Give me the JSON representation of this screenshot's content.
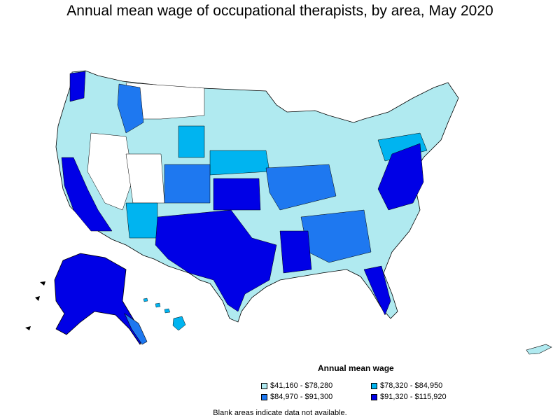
{
  "title": "Annual mean wage of occupational therapists, by area, May 2020",
  "legend": {
    "title": "Annual mean wage",
    "items": [
      {
        "label": "$41,160 - $78,280",
        "color": "#b0eaf0"
      },
      {
        "label": "$78,320 - $84,950",
        "color": "#00b4f0"
      },
      {
        "label": "$84,970 - $91,300",
        "color": "#1e78f0"
      },
      {
        "label": "$91,320 - $115,920",
        "color": "#0000e6"
      }
    ]
  },
  "note": "Blank areas indicate data not available.",
  "colors": {
    "tier1": "#b0eaf0",
    "tier2": "#00b4f0",
    "tier3": "#1e78f0",
    "tier4": "#0000e6",
    "blank": "#ffffff",
    "border": "#000000"
  }
}
